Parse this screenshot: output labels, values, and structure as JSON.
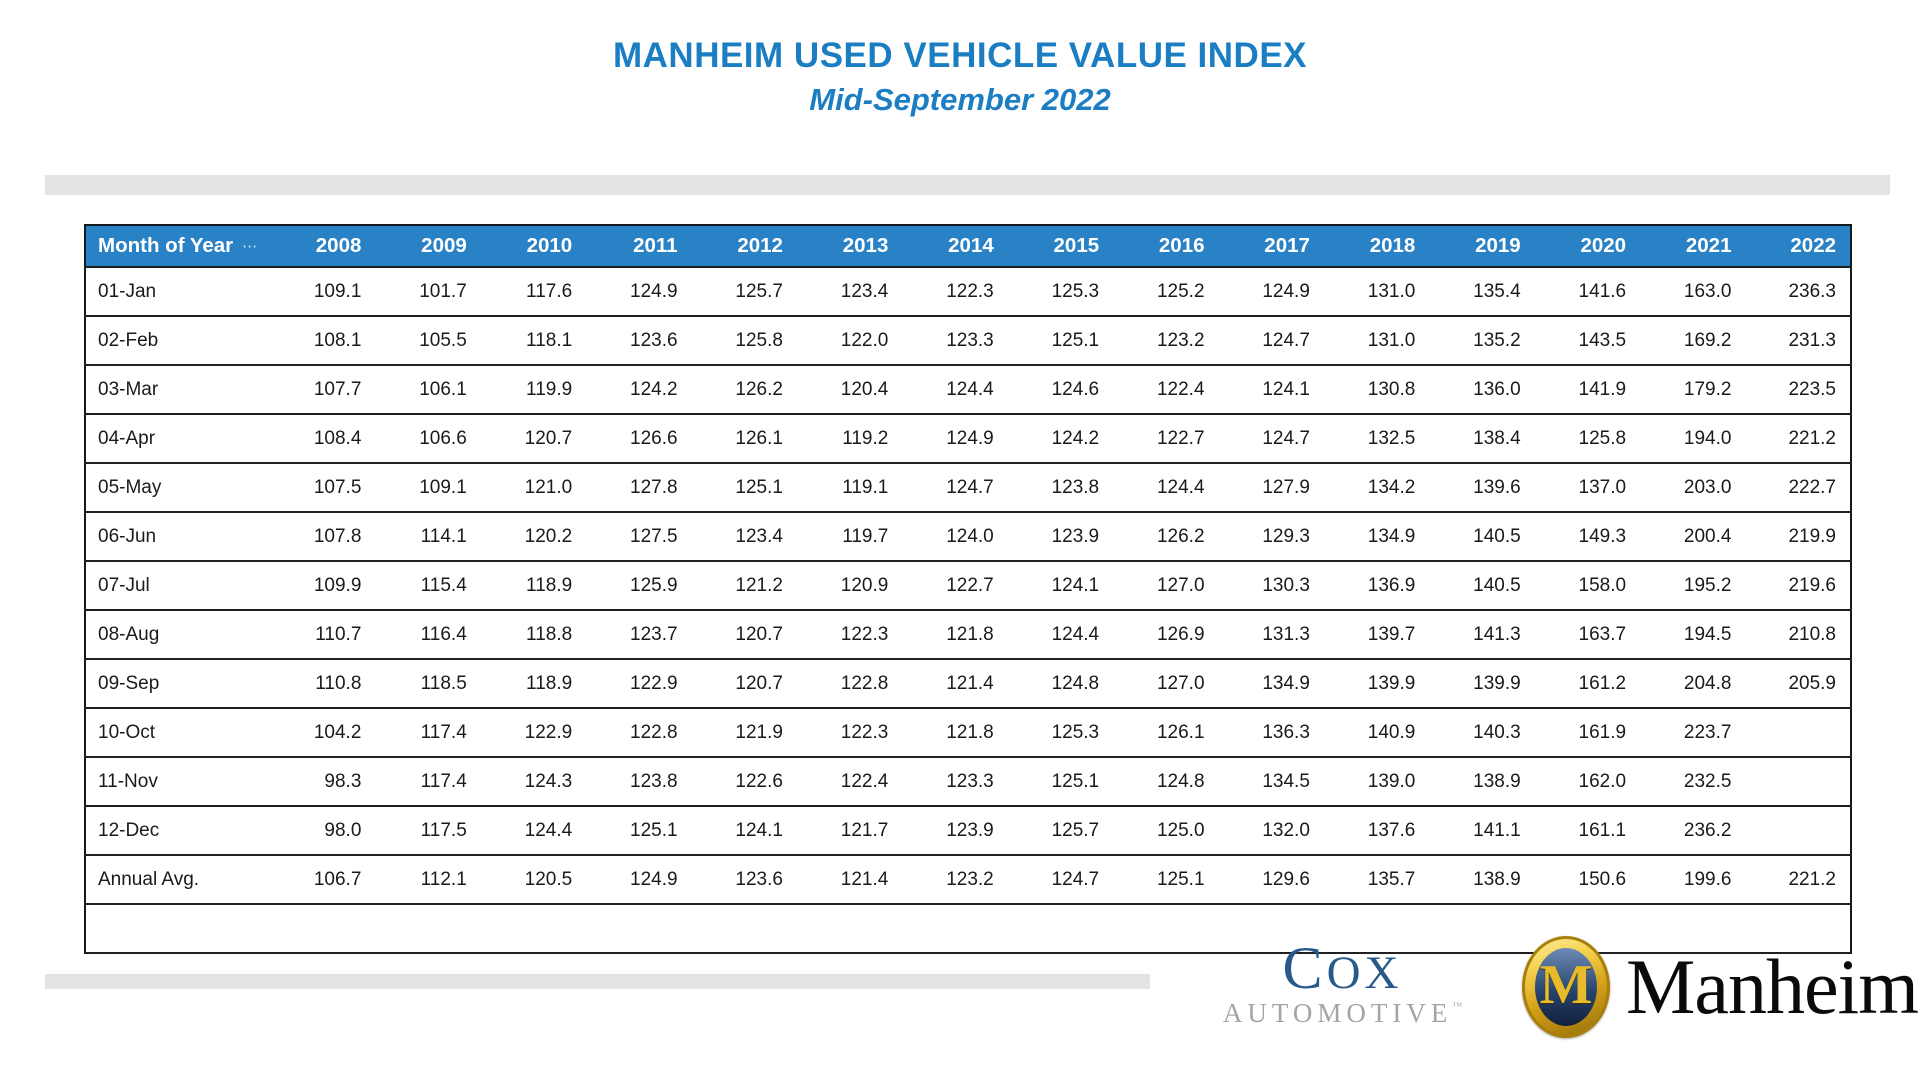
{
  "chart_data": {
    "type": "table",
    "title": "MANHEIM USED VEHICLE VALUE INDEX",
    "subtitle": "Mid-September 2022",
    "more_indicator": "⋯",
    "columns": [
      "Month of Year",
      "2008",
      "2009",
      "2010",
      "2011",
      "2012",
      "2013",
      "2014",
      "2015",
      "2016",
      "2017",
      "2018",
      "2019",
      "2020",
      "2021",
      "2022"
    ],
    "rows": [
      {
        "label": "01-Jan",
        "values": [
          "109.1",
          "101.7",
          "117.6",
          "124.9",
          "125.7",
          "123.4",
          "122.3",
          "125.3",
          "125.2",
          "124.9",
          "131.0",
          "135.4",
          "141.6",
          "163.0",
          "236.3"
        ]
      },
      {
        "label": "02-Feb",
        "values": [
          "108.1",
          "105.5",
          "118.1",
          "123.6",
          "125.8",
          "122.0",
          "123.3",
          "125.1",
          "123.2",
          "124.7",
          "131.0",
          "135.2",
          "143.5",
          "169.2",
          "231.3"
        ]
      },
      {
        "label": "03-Mar",
        "values": [
          "107.7",
          "106.1",
          "119.9",
          "124.2",
          "126.2",
          "120.4",
          "124.4",
          "124.6",
          "122.4",
          "124.1",
          "130.8",
          "136.0",
          "141.9",
          "179.2",
          "223.5"
        ]
      },
      {
        "label": "04-Apr",
        "values": [
          "108.4",
          "106.6",
          "120.7",
          "126.6",
          "126.1",
          "119.2",
          "124.9",
          "124.2",
          "122.7",
          "124.7",
          "132.5",
          "138.4",
          "125.8",
          "194.0",
          "221.2"
        ]
      },
      {
        "label": "05-May",
        "values": [
          "107.5",
          "109.1",
          "121.0",
          "127.8",
          "125.1",
          "119.1",
          "124.7",
          "123.8",
          "124.4",
          "127.9",
          "134.2",
          "139.6",
          "137.0",
          "203.0",
          "222.7"
        ]
      },
      {
        "label": "06-Jun",
        "values": [
          "107.8",
          "114.1",
          "120.2",
          "127.5",
          "123.4",
          "119.7",
          "124.0",
          "123.9",
          "126.2",
          "129.3",
          "134.9",
          "140.5",
          "149.3",
          "200.4",
          "219.9"
        ]
      },
      {
        "label": "07-Jul",
        "values": [
          "109.9",
          "115.4",
          "118.9",
          "125.9",
          "121.2",
          "120.9",
          "122.7",
          "124.1",
          "127.0",
          "130.3",
          "136.9",
          "140.5",
          "158.0",
          "195.2",
          "219.6"
        ]
      },
      {
        "label": "08-Aug",
        "values": [
          "110.7",
          "116.4",
          "118.8",
          "123.7",
          "120.7",
          "122.3",
          "121.8",
          "124.4",
          "126.9",
          "131.3",
          "139.7",
          "141.3",
          "163.7",
          "194.5",
          "210.8"
        ]
      },
      {
        "label": "09-Sep",
        "values": [
          "110.8",
          "118.5",
          "118.9",
          "122.9",
          "120.7",
          "122.8",
          "121.4",
          "124.8",
          "127.0",
          "134.9",
          "139.9",
          "139.9",
          "161.2",
          "204.8",
          "205.9"
        ]
      },
      {
        "label": "10-Oct",
        "values": [
          "104.2",
          "117.4",
          "122.9",
          "122.8",
          "121.9",
          "122.3",
          "121.8",
          "125.3",
          "126.1",
          "136.3",
          "140.9",
          "140.3",
          "161.9",
          "223.7",
          ""
        ]
      },
      {
        "label": "11-Nov",
        "values": [
          "98.3",
          "117.4",
          "124.3",
          "123.8",
          "122.6",
          "122.4",
          "123.3",
          "125.1",
          "124.8",
          "134.5",
          "139.0",
          "138.9",
          "162.0",
          "232.5",
          ""
        ]
      },
      {
        "label": "12-Dec",
        "values": [
          "98.0",
          "117.5",
          "124.4",
          "125.1",
          "124.1",
          "121.7",
          "123.9",
          "125.7",
          "125.0",
          "132.0",
          "137.6",
          "141.1",
          "161.1",
          "236.2",
          ""
        ]
      },
      {
        "label": "Annual Avg.",
        "values": [
          "106.7",
          "112.1",
          "120.5",
          "124.9",
          "123.6",
          "121.4",
          "123.2",
          "124.7",
          "125.1",
          "129.6",
          "135.7",
          "138.9",
          "150.6",
          "199.6",
          "221.2"
        ]
      }
    ],
    "empty_trailing_row": true
  },
  "footer": {
    "cox": {
      "initial": "C",
      "rest": "OX",
      "line2": "AUTOMOTIVE",
      "tm": "™"
    },
    "manheim": {
      "monogram": "M",
      "wordmark": "Manheim"
    }
  },
  "colors": {
    "title_blue": "#1B7EC3",
    "header_blue": "#2A82C6",
    "bar_gray": "#E3E3E3",
    "cox_navy": "#28598A",
    "cox_gray": "#A5A5A5",
    "gold": "#E8BB2A",
    "navy": "#1F3864"
  }
}
